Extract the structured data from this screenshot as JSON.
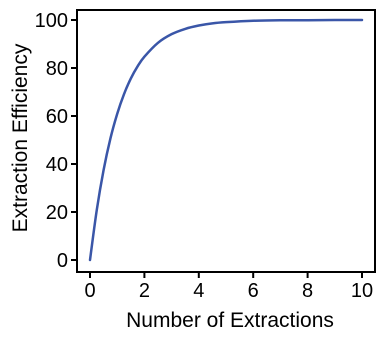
{
  "chart_data": {
    "type": "line",
    "xlabel": "Number of Extractions",
    "ylabel": "Extraction Efficiency",
    "xlim": [
      0,
      10
    ],
    "ylim": [
      0,
      100
    ],
    "x_ticks": [
      "0",
      "2",
      "4",
      "6",
      "8",
      "10"
    ],
    "y_ticks": [
      "0",
      "20",
      "40",
      "60",
      "80",
      "100"
    ],
    "grid": false,
    "legend": "none",
    "series": [
      {
        "color": "#3a56a8",
        "x": [
          0,
          0.25,
          0.5,
          0.75,
          1,
          1.25,
          1.5,
          1.75,
          2,
          2.5,
          3,
          3.5,
          4,
          4.5,
          5,
          6,
          7,
          8,
          9,
          10
        ],
        "y": [
          0,
          20.9,
          37.5,
          50.6,
          60.9,
          69.1,
          75.6,
          80.7,
          84.7,
          90.5,
          94.1,
          96.3,
          97.7,
          98.6,
          99.1,
          99.7,
          99.9,
          99.9,
          100,
          100
        ]
      }
    ]
  }
}
